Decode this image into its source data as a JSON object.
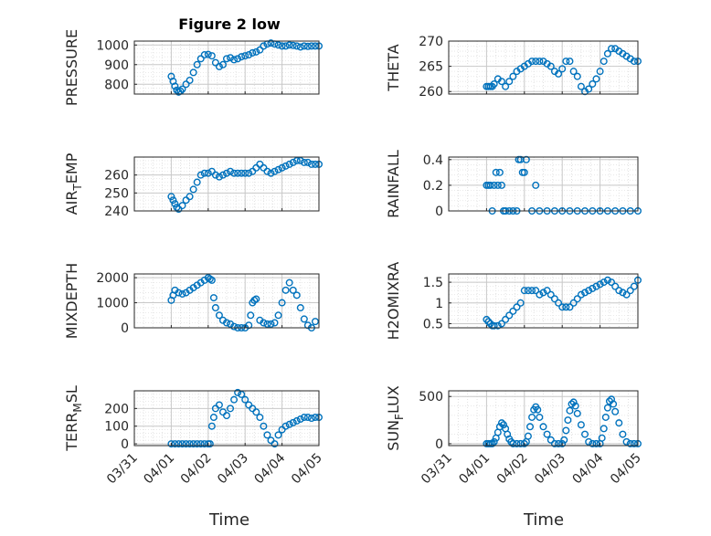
{
  "figure": {
    "title": "Figure 2 low",
    "xlabel": "Time",
    "x_ticks": [
      "03/31",
      "04/01",
      "04/02",
      "04/03",
      "04/04",
      "04/05"
    ],
    "marker": "circle",
    "marker_color": "#0072BD",
    "grid": "major-minor dotted"
  },
  "chart_data": [
    {
      "type": "scatter",
      "ylabel": "PRESSURE",
      "ylabel_sub": "",
      "ylim": [
        750,
        1020
      ],
      "yticks": [
        "800",
        "900",
        "1000"
      ],
      "ytick_values": [
        800,
        900,
        1000
      ],
      "x": [
        1.0,
        1.05,
        1.1,
        1.15,
        1.2,
        1.25,
        1.3,
        1.4,
        1.5,
        1.6,
        1.7,
        1.8,
        1.9,
        2.0,
        2.1,
        2.2,
        2.3,
        2.4,
        2.5,
        2.6,
        2.7,
        2.8,
        2.9,
        3.0,
        3.1,
        3.2,
        3.3,
        3.4,
        3.5,
        3.6,
        3.7,
        3.8,
        3.9,
        4.0,
        4.1,
        4.2,
        4.3,
        4.4,
        4.5,
        4.6,
        4.7,
        4.8,
        4.9,
        5.0
      ],
      "y": [
        840,
        815,
        790,
        770,
        760,
        765,
        775,
        800,
        820,
        860,
        900,
        930,
        950,
        952,
        945,
        910,
        890,
        900,
        930,
        935,
        925,
        930,
        940,
        945,
        950,
        960,
        965,
        975,
        995,
        1005,
        1010,
        1005,
        1000,
        995,
        995,
        1000,
        998,
        995,
        990,
        995,
        993,
        995,
        995,
        995
      ]
    },
    {
      "type": "scatter",
      "ylabel": "THETA",
      "ylabel_sub": "",
      "ylim": [
        259.5,
        270
      ],
      "yticks": [
        "260",
        "265",
        "270"
      ],
      "ytick_values": [
        260,
        265,
        270
      ],
      "x": [
        1.0,
        1.05,
        1.1,
        1.15,
        1.2,
        1.3,
        1.4,
        1.5,
        1.6,
        1.7,
        1.8,
        1.9,
        2.0,
        2.1,
        2.2,
        2.3,
        2.4,
        2.5,
        2.6,
        2.7,
        2.8,
        2.9,
        3.0,
        3.1,
        3.2,
        3.3,
        3.4,
        3.5,
        3.6,
        3.7,
        3.8,
        3.9,
        4.0,
        4.1,
        4.2,
        4.3,
        4.4,
        4.5,
        4.6,
        4.7,
        4.8,
        4.9,
        5.0
      ],
      "y": [
        261,
        261,
        261,
        261,
        261.5,
        262.5,
        262,
        261,
        262,
        263,
        264,
        264.5,
        265,
        265.5,
        266,
        266,
        266,
        266,
        265.5,
        265,
        264,
        263.5,
        264.5,
        266,
        266,
        264,
        263,
        261,
        260,
        260.5,
        261.5,
        262.5,
        264,
        266,
        267.5,
        268.5,
        268.5,
        268,
        267.5,
        267,
        266.5,
        266,
        266
      ]
    },
    {
      "type": "scatter",
      "ylabel": "AIR",
      "ylabel_sub": "T",
      "ylabel_suffix": "EMP",
      "ylim": [
        240,
        270
      ],
      "yticks": [
        "240",
        "250",
        "260"
      ],
      "ytick_values": [
        240,
        250,
        260
      ],
      "x": [
        1.0,
        1.05,
        1.1,
        1.15,
        1.2,
        1.3,
        1.4,
        1.5,
        1.6,
        1.7,
        1.8,
        1.9,
        2.0,
        2.1,
        2.2,
        2.3,
        2.4,
        2.5,
        2.6,
        2.7,
        2.8,
        2.9,
        3.0,
        3.1,
        3.2,
        3.3,
        3.4,
        3.5,
        3.6,
        3.7,
        3.8,
        3.9,
        4.0,
        4.1,
        4.2,
        4.3,
        4.4,
        4.5,
        4.6,
        4.7,
        4.8,
        4.9,
        5.0
      ],
      "y": [
        248,
        246,
        244,
        242,
        241,
        243,
        246,
        248,
        252,
        256,
        260,
        261,
        261,
        262,
        260,
        259,
        260,
        261,
        262,
        261,
        261,
        261,
        261,
        261,
        262,
        264,
        266,
        264,
        262,
        261,
        262,
        263,
        264,
        265,
        266,
        267,
        268,
        268,
        267,
        267,
        266,
        266,
        266
      ]
    },
    {
      "type": "scatter",
      "ylabel": "RAINFALL",
      "ylabel_sub": "",
      "ylim": [
        0,
        0.42
      ],
      "yticks": [
        "0",
        "0.2",
        "0.4"
      ],
      "ytick_values": [
        0,
        0.2,
        0.4
      ],
      "x": [
        1.0,
        1.05,
        1.1,
        1.15,
        1.2,
        1.25,
        1.3,
        1.35,
        1.4,
        1.45,
        1.5,
        1.8,
        1.85,
        1.9,
        1.95,
        2.0,
        2.05,
        2.2,
        2.3,
        2.4,
        2.6,
        2.8,
        3.0,
        3.2,
        3.4,
        3.6,
        3.8,
        4.0,
        4.2,
        4.4,
        4.6,
        4.8,
        5.0,
        1.6,
        1.7
      ],
      "y": [
        0.2,
        0.2,
        0.2,
        0,
        0.2,
        0.3,
        0.2,
        0.3,
        0.2,
        0,
        0,
        0,
        0.4,
        0.4,
        0.3,
        0.3,
        0.4,
        0,
        0.2,
        0,
        0,
        0,
        0,
        0,
        0,
        0,
        0,
        0,
        0,
        0,
        0,
        0,
        0,
        0,
        0
      ]
    },
    {
      "type": "scatter",
      "ylabel": "MIXDEPTH",
      "ylabel_sub": "",
      "ylim": [
        0,
        2150
      ],
      "yticks": [
        "0",
        "1000",
        "2000"
      ],
      "ytick_values": [
        0,
        1000,
        2000
      ],
      "x": [
        1.0,
        1.05,
        1.1,
        1.2,
        1.3,
        1.4,
        1.5,
        1.6,
        1.7,
        1.8,
        1.9,
        2.0,
        2.05,
        2.1,
        2.15,
        2.2,
        2.3,
        2.4,
        2.5,
        2.6,
        2.7,
        2.8,
        2.9,
        3.0,
        3.1,
        3.15,
        3.2,
        3.25,
        3.3,
        3.4,
        3.5,
        3.6,
        3.7,
        3.8,
        3.9,
        4.0,
        4.1,
        4.2,
        4.3,
        4.4,
        4.5,
        4.6,
        4.7,
        4.8,
        4.9
      ],
      "y": [
        1100,
        1300,
        1500,
        1400,
        1350,
        1400,
        1500,
        1600,
        1700,
        1800,
        1900,
        2000,
        1950,
        1900,
        1200,
        800,
        500,
        300,
        200,
        150,
        50,
        0,
        0,
        0,
        100,
        500,
        1000,
        1100,
        1150,
        300,
        200,
        150,
        150,
        200,
        500,
        1000,
        1500,
        1800,
        1500,
        1300,
        800,
        350,
        100,
        0,
        250
      ]
    },
    {
      "type": "scatter",
      "ylabel": "H2OMIXRA",
      "ylabel_sub": "",
      "ylim": [
        0.4,
        1.7
      ],
      "yticks": [
        "0.5",
        "1",
        "1.5"
      ],
      "ytick_values": [
        0.5,
        1,
        1.5
      ],
      "x": [
        1.0,
        1.05,
        1.1,
        1.15,
        1.2,
        1.3,
        1.4,
        1.5,
        1.6,
        1.7,
        1.8,
        1.9,
        2.0,
        2.1,
        2.2,
        2.3,
        2.4,
        2.5,
        2.6,
        2.7,
        2.8,
        2.9,
        3.0,
        3.1,
        3.2,
        3.3,
        3.4,
        3.5,
        3.6,
        3.7,
        3.8,
        3.9,
        4.0,
        4.1,
        4.2,
        4.3,
        4.4,
        4.5,
        4.6,
        4.7,
        4.8,
        4.9,
        5.0
      ],
      "y": [
        0.6,
        0.55,
        0.5,
        0.45,
        0.45,
        0.45,
        0.5,
        0.6,
        0.7,
        0.8,
        0.9,
        1.0,
        1.3,
        1.3,
        1.3,
        1.3,
        1.2,
        1.25,
        1.3,
        1.2,
        1.1,
        1.0,
        0.9,
        0.9,
        0.9,
        1.0,
        1.1,
        1.2,
        1.25,
        1.3,
        1.35,
        1.4,
        1.45,
        1.5,
        1.55,
        1.5,
        1.4,
        1.3,
        1.25,
        1.2,
        1.3,
        1.4,
        1.55
      ]
    },
    {
      "type": "scatter",
      "ylabel": "TERR",
      "ylabel_sub": "M",
      "ylabel_suffix": "SL",
      "ylim": [
        -10,
        300
      ],
      "yticks": [
        "0",
        "100",
        "200"
      ],
      "ytick_values": [
        0,
        100,
        200
      ],
      "x": [
        1.0,
        1.1,
        1.2,
        1.3,
        1.4,
        1.5,
        1.6,
        1.7,
        1.8,
        1.9,
        2.0,
        2.05,
        2.1,
        2.15,
        2.2,
        2.3,
        2.4,
        2.5,
        2.6,
        2.7,
        2.8,
        2.9,
        3.0,
        3.1,
        3.2,
        3.3,
        3.4,
        3.5,
        3.6,
        3.7,
        3.8,
        3.9,
        4.0,
        4.1,
        4.2,
        4.3,
        4.4,
        4.5,
        4.6,
        4.7,
        4.8,
        4.9,
        5.0
      ],
      "y": [
        0,
        0,
        0,
        0,
        0,
        0,
        0,
        0,
        0,
        0,
        0,
        0,
        100,
        150,
        200,
        220,
        180,
        160,
        200,
        250,
        290,
        280,
        250,
        220,
        200,
        180,
        150,
        100,
        50,
        20,
        0,
        50,
        80,
        100,
        110,
        120,
        130,
        140,
        150,
        150,
        145,
        150,
        150
      ]
    },
    {
      "type": "scatter",
      "ylabel": "SUN",
      "ylabel_sub": "F",
      "ylabel_suffix": "LUX",
      "ylim": [
        -20,
        560
      ],
      "yticks": [
        "0",
        "500"
      ],
      "ytick_values": [
        0,
        500
      ],
      "x": [
        1.0,
        1.05,
        1.1,
        1.15,
        1.2,
        1.25,
        1.3,
        1.35,
        1.4,
        1.45,
        1.5,
        1.55,
        1.6,
        1.65,
        1.7,
        1.8,
        1.9,
        2.0,
        2.05,
        2.1,
        2.15,
        2.2,
        2.25,
        2.3,
        2.35,
        2.4,
        2.5,
        2.6,
        2.7,
        2.8,
        2.9,
        3.0,
        3.05,
        3.1,
        3.15,
        3.2,
        3.25,
        3.3,
        3.35,
        3.4,
        3.5,
        3.6,
        3.7,
        3.8,
        3.9,
        4.0,
        4.05,
        4.1,
        4.15,
        4.2,
        4.25,
        4.3,
        4.35,
        4.4,
        4.5,
        4.6,
        4.7,
        4.8,
        4.9,
        5.0
      ],
      "y": [
        0,
        0,
        0,
        0,
        20,
        60,
        120,
        180,
        220,
        200,
        160,
        100,
        50,
        20,
        0,
        0,
        0,
        0,
        20,
        80,
        180,
        280,
        360,
        390,
        360,
        280,
        180,
        100,
        40,
        0,
        0,
        0,
        40,
        140,
        250,
        350,
        420,
        440,
        400,
        320,
        200,
        100,
        20,
        0,
        0,
        0,
        60,
        160,
        280,
        380,
        450,
        470,
        420,
        340,
        220,
        100,
        20,
        0,
        0,
        0
      ]
    }
  ]
}
